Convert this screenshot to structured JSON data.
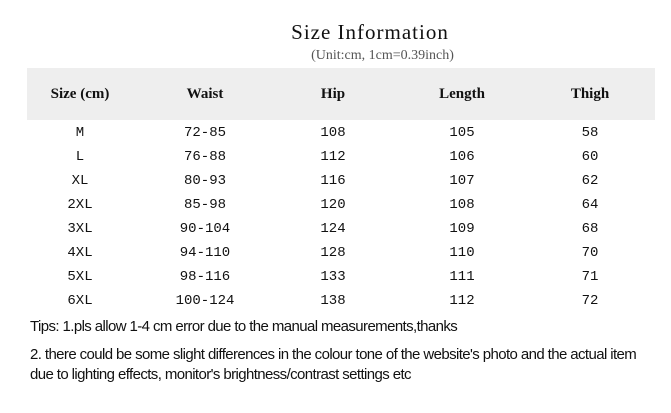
{
  "title": "Size Information",
  "subtitle": "(Unit:cm, 1cm=0.39inch)",
  "table": {
    "headers": [
      "Size (cm)",
      "Waist",
      "Hip",
      "Length",
      "Thigh"
    ],
    "rows": [
      [
        "M",
        "72-85",
        "108",
        "105",
        "58"
      ],
      [
        "L",
        "76-88",
        "112",
        "106",
        "60"
      ],
      [
        "XL",
        "80-93",
        "116",
        "107",
        "62"
      ],
      [
        "2XL",
        "85-98",
        "120",
        "108",
        "64"
      ],
      [
        "3XL",
        "90-104",
        "124",
        "109",
        "68"
      ],
      [
        "4XL",
        "94-110",
        "128",
        "110",
        "70"
      ],
      [
        "5XL",
        "98-116",
        "133",
        "111",
        "71"
      ],
      [
        "6XL",
        "100-124",
        "138",
        "112",
        "72"
      ]
    ],
    "header_bg": "#eeeeee"
  },
  "tips": [
    "Tips: 1.pls allow 1-4 cm error due to the manual measurements,thanks",
    "2. there could be some slight differences in the colour tone of the website's photo and the actual item due to  lighting effects, monitor's brightness/contrast settings etc"
  ]
}
